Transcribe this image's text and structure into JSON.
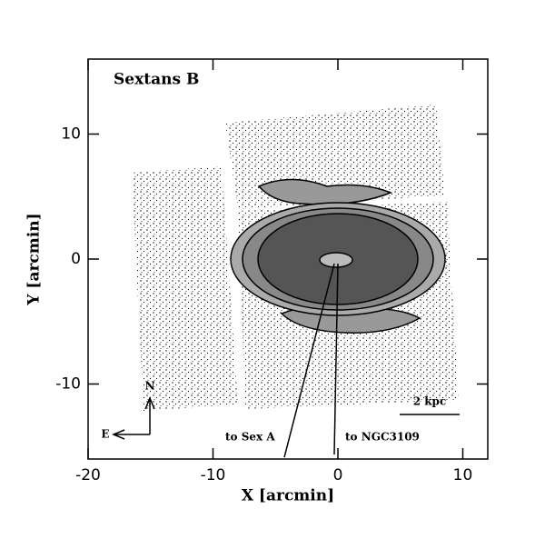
{
  "chart_data": {
    "type": "map",
    "title": "Sextans B",
    "x_label": "X [arcmin]",
    "y_label": "Y [arcmin]",
    "xlim": [
      -20,
      12
    ],
    "ylim": [
      -16,
      16
    ],
    "xticks": [
      -20,
      -10,
      0,
      10
    ],
    "yticks": [
      -10,
      0,
      10
    ],
    "annotations": {
      "scale": "2 kpc",
      "sexa": "to Sex A",
      "ngc": "to NGC3109",
      "north": "N",
      "east": "E"
    }
  }
}
